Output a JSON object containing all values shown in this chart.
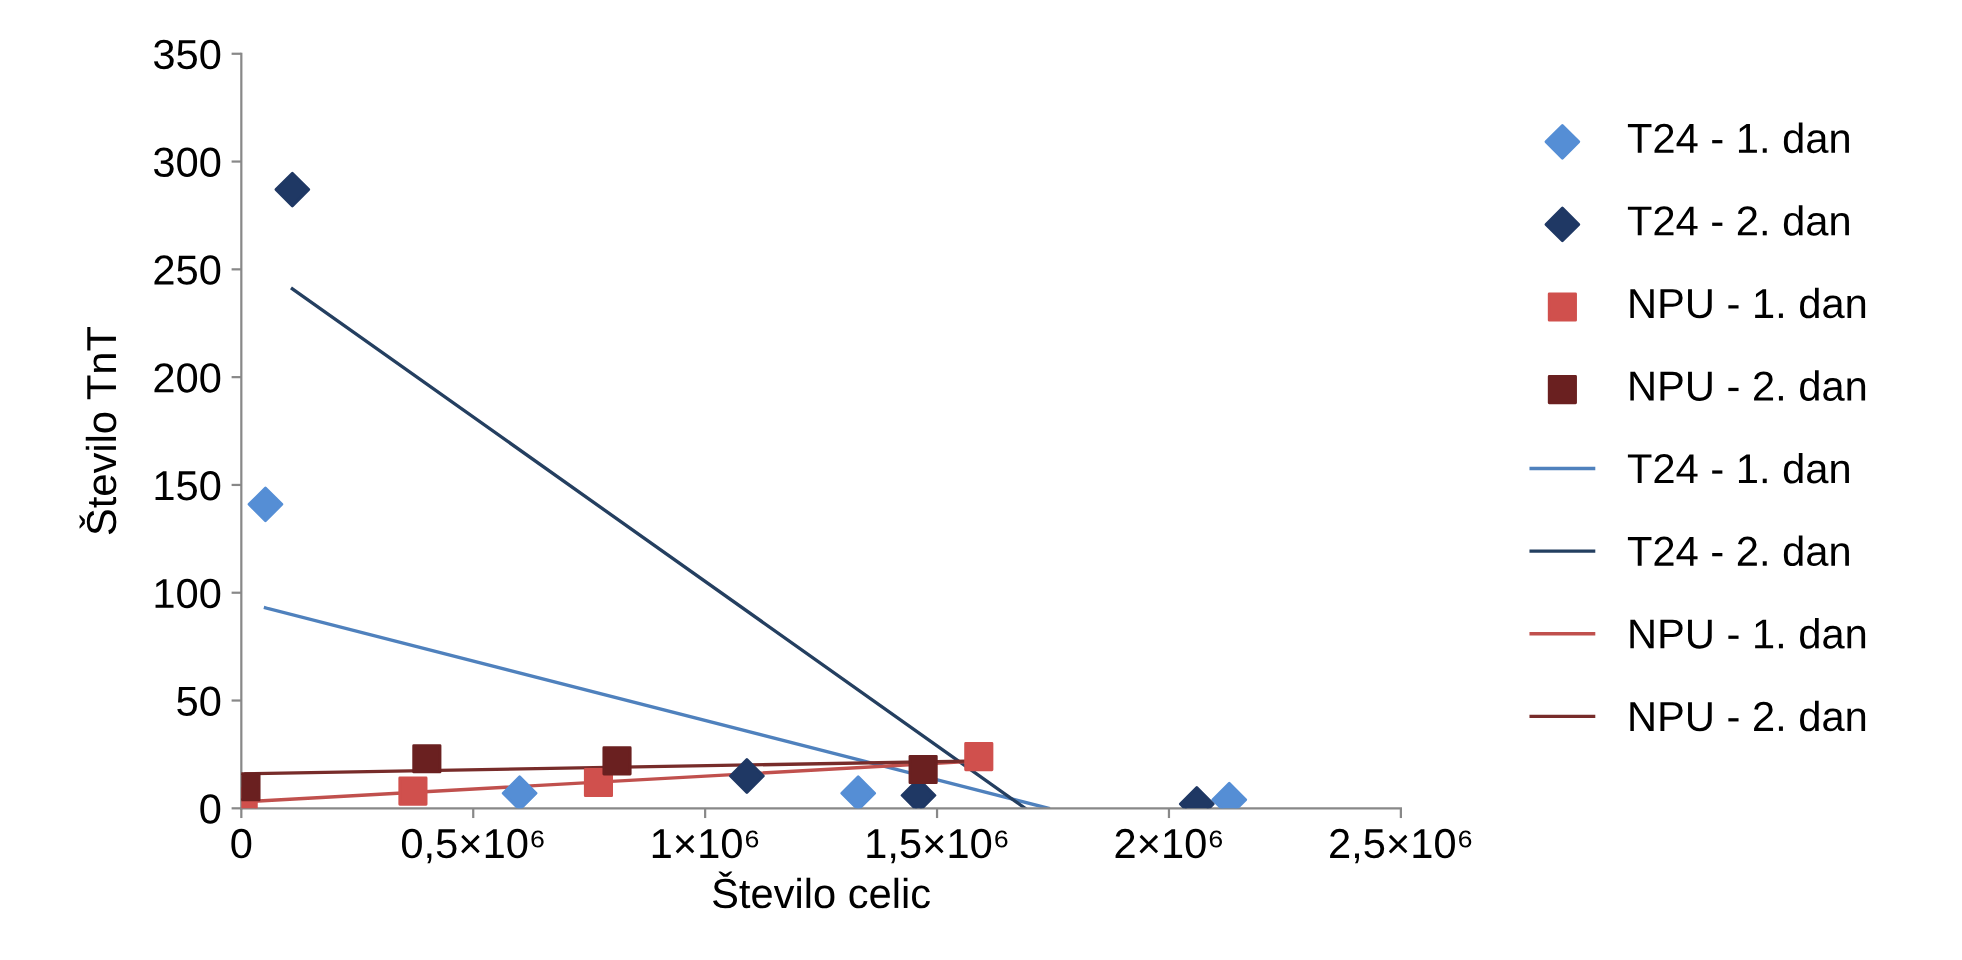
{
  "chart_data": {
    "type": "scatter",
    "xlabel": "Število celic",
    "ylabel": "Število TnT",
    "xlim": [
      0,
      2500000
    ],
    "xticks": [
      {
        "value": 0,
        "label": "0"
      },
      {
        "value": 500000,
        "label": "0,5×10⁶"
      },
      {
        "value": 1000000,
        "label": "1×10⁶"
      },
      {
        "value": 1500000,
        "label": "1,5×10⁶"
      },
      {
        "value": 2000000,
        "label": "2×10⁶"
      },
      {
        "value": 2500000,
        "label": "2,5×10⁶"
      }
    ],
    "ylim": [
      0,
      350
    ],
    "yticks": [
      0,
      50,
      100,
      150,
      200,
      250,
      300,
      350
    ],
    "grid": false,
    "legend": "right",
    "series": [
      {
        "name": "T24 - 1. dan",
        "marker": "diamond",
        "color": "#558ed5",
        "x": [
          52000,
          600000,
          1330000,
          2130000
        ],
        "values": [
          141,
          7,
          7,
          4
        ]
      },
      {
        "name": "T24 - 2. dan",
        "marker": "diamond",
        "color": "#1f3864",
        "x": [
          110000,
          1090000,
          1460000,
          2060000
        ],
        "values": [
          287,
          15,
          6,
          2
        ]
      },
      {
        "name": "NPU - 1. dan",
        "marker": "square",
        "color": "#d0504d",
        "x": [
          4000,
          370000,
          770000,
          1590000
        ],
        "values": [
          3,
          8,
          12,
          24
        ]
      },
      {
        "name": "NPU - 2. dan",
        "marker": "square",
        "color": "#6a2020",
        "x": [
          10000,
          400000,
          810000,
          1470000
        ],
        "values": [
          10,
          23,
          22,
          18
        ]
      },
      {
        "name": "T24 - 1. dan",
        "type": "line",
        "marker": "none",
        "color": "#4f81bd",
        "x": [
          52000,
          1740000
        ],
        "values": [
          93,
          0
        ]
      },
      {
        "name": "T24 - 2. dan",
        "type": "line",
        "marker": "none",
        "color": "#243f60",
        "x": [
          110000,
          1690000
        ],
        "values": [
          241,
          0
        ]
      },
      {
        "name": "NPU - 1. dan",
        "type": "line",
        "marker": "none",
        "color": "#c0504d",
        "x": [
          4000,
          1590000
        ],
        "values": [
          3,
          22
        ]
      },
      {
        "name": "NPU - 2. dan",
        "type": "line",
        "marker": "none",
        "color": "#772c2a",
        "x": [
          10000,
          1590000
        ],
        "values": [
          16,
          22
        ]
      }
    ]
  }
}
